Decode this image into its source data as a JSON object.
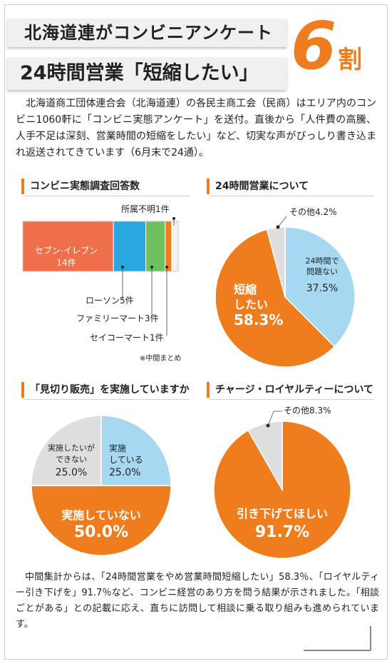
{
  "header": {
    "title_line1": "北海道連がコンビニアンケート",
    "title_line2": "24時間営業「短縮したい」",
    "highlight_number": "6",
    "highlight_unit": "割",
    "accent_color": "#ef7d1e"
  },
  "intro_text": "北海道商工団体連合会（北海道連）の各民主商工会（民商）はエリア内のコンビニ1060軒に「コンビニ実態アンケート」を送付。直後から「人件費の高騰、人手不足は深刻、営業時間の短縮をしたい」など、切実な声がびっしり書き込まれ返送されてきています（6月末で24通）。",
  "outro_text": "中間集計からは、「24時間営業をやめ営業時間短縮したい」58.3％、「ロイヤルティー引き下げを」91.7％など、コンビニ経営のあり方を問う結果が示されました。「相談ごとがある」との記載に応え、直ちに訪問して相談に乗る取り組みも進められています。",
  "chart_data": [
    {
      "type": "bar",
      "title": "コンビニ実態調査回答数",
      "stacked": true,
      "orientation": "horizontal",
      "categories": [
        "セブン-イレブン",
        "ローソン",
        "ファミリーマート",
        "セイコーマート",
        "所属不明"
      ],
      "values": [
        14,
        5,
        3,
        1,
        1
      ],
      "labels": [
        "セブン-イレブン\n14件",
        "ローソン5件",
        "ファミリーマート3件",
        "セイコーマート1件",
        "所属不明1件"
      ],
      "colors": [
        "#ef6f4b",
        "#29a8e0",
        "#6ebf5f",
        "#ef7d1e",
        "#f2f2f2"
      ],
      "note": "※中間まとめ"
    },
    {
      "type": "pie",
      "title": "24時間営業について",
      "slices": [
        {
          "label": "24時間で問題ない",
          "value": 37.5,
          "display": "37.5%",
          "color": "#a6d8f2"
        },
        {
          "label": "短縮したい",
          "value": 58.3,
          "display": "58.3%",
          "color": "#ef7d1e"
        },
        {
          "label": "その他",
          "value": 4.2,
          "display": "4.2%",
          "color": "#dedede"
        }
      ]
    },
    {
      "type": "pie",
      "title": "「見切り販売」を実施していますか",
      "slices": [
        {
          "label": "実施している",
          "value": 25.0,
          "display": "25.0%",
          "color": "#a6d8f2"
        },
        {
          "label": "実施していない",
          "value": 50.0,
          "display": "50.0%",
          "color": "#ef7d1e"
        },
        {
          "label": "実施したいができない",
          "value": 25.0,
          "display": "25.0%",
          "color": "#dedede"
        }
      ]
    },
    {
      "type": "pie",
      "title": "チャージ・ロイヤルティーについて",
      "slices": [
        {
          "label": "引き下げてほしい",
          "value": 91.7,
          "display": "91.7%",
          "color": "#ef7d1e"
        },
        {
          "label": "その他",
          "value": 8.3,
          "display": "8.3%",
          "color": "#dedede"
        }
      ]
    }
  ],
  "bar_labels": {
    "seven": "セブン-イレブン",
    "seven_count": "14件",
    "lawson": "ローソン5件",
    "family": "ファミリーマート3件",
    "seico": "セイコーマート1件",
    "unknown": "所属不明1件"
  },
  "pie1_labels": {
    "ok_line1": "24時間で",
    "ok_line2": "問題ない",
    "ok_pct": "37.5%",
    "short_line1": "短縮",
    "short_line2": "したい",
    "short_pct": "58.3%",
    "other": "その他4.2%"
  },
  "pie2_labels": {
    "yes_line1": "実施",
    "yes_line2": "している",
    "yes_pct": "25.0%",
    "want_line1": "実施したいが",
    "want_line2": "できない",
    "want_pct": "25.0%",
    "no_line1": "実施していない",
    "no_pct": "50.0%"
  },
  "pie3_labels": {
    "down_line1": "引き下げてほしい",
    "down_pct": "91.7%",
    "other": "その他8.3%"
  }
}
